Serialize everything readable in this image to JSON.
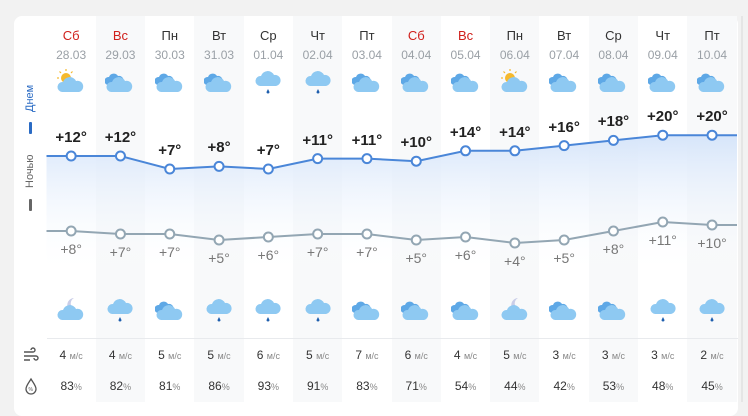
{
  "labels": {
    "day": "Днем",
    "night": "Ночью",
    "wind_unit": "м/с",
    "humidity_unit": "%"
  },
  "colors": {
    "day_line": "#4a86d8",
    "night_line": "#93a6b3",
    "weekend": "#d0201c"
  },
  "days": [
    {
      "name": "Сб",
      "date": "28.03",
      "weekend": true,
      "day_icon": "sun-cloud-icon",
      "day_temp": "+12°",
      "night_icon": "moon-cloud-icon",
      "night_temp": "+8°",
      "wind": "4",
      "humidity": "83",
      "d": 12,
      "n": 8
    },
    {
      "name": "Вс",
      "date": "29.03",
      "weekend": true,
      "day_icon": "clouds-icon",
      "day_temp": "+12°",
      "night_icon": "cloud-rain-icon",
      "night_temp": "+7°",
      "wind": "4",
      "humidity": "82",
      "d": 12,
      "n": 7
    },
    {
      "name": "Пн",
      "date": "30.03",
      "weekend": false,
      "day_icon": "clouds-icon",
      "day_temp": "+7°",
      "night_icon": "clouds-icon",
      "night_temp": "+7°",
      "wind": "5",
      "humidity": "81",
      "d": 7,
      "n": 7
    },
    {
      "name": "Вт",
      "date": "31.03",
      "weekend": false,
      "day_icon": "clouds-icon",
      "day_temp": "+8°",
      "night_icon": "cloud-rain-icon",
      "night_temp": "+5°",
      "wind": "5",
      "humidity": "86",
      "d": 8,
      "n": 5
    },
    {
      "name": "Ср",
      "date": "01.04",
      "weekend": false,
      "day_icon": "cloud-rain-icon",
      "day_temp": "+7°",
      "night_icon": "cloud-rain-icon",
      "night_temp": "+6°",
      "wind": "6",
      "humidity": "93",
      "d": 7,
      "n": 6
    },
    {
      "name": "Чт",
      "date": "02.04",
      "weekend": false,
      "day_icon": "cloud-rain-icon",
      "day_temp": "+11°",
      "night_icon": "cloud-rain-icon",
      "night_temp": "+7°",
      "wind": "5",
      "humidity": "91",
      "d": 11,
      "n": 7
    },
    {
      "name": "Пт",
      "date": "03.04",
      "weekend": false,
      "day_icon": "clouds-icon",
      "day_temp": "+11°",
      "night_icon": "clouds-icon",
      "night_temp": "+7°",
      "wind": "7",
      "humidity": "83",
      "d": 11,
      "n": 7
    },
    {
      "name": "Сб",
      "date": "04.04",
      "weekend": true,
      "day_icon": "clouds-icon",
      "day_temp": "+10°",
      "night_icon": "clouds-icon",
      "night_temp": "+5°",
      "wind": "6",
      "humidity": "71",
      "d": 10,
      "n": 5
    },
    {
      "name": "Вс",
      "date": "05.04",
      "weekend": true,
      "day_icon": "clouds-icon",
      "day_temp": "+14°",
      "night_icon": "clouds-icon",
      "night_temp": "+6°",
      "wind": "4",
      "humidity": "54",
      "d": 14,
      "n": 6
    },
    {
      "name": "Пн",
      "date": "06.04",
      "weekend": false,
      "day_icon": "sun-cloud-icon",
      "day_temp": "+14°",
      "night_icon": "moon-cloud-icon",
      "night_temp": "+4°",
      "wind": "5",
      "humidity": "44",
      "d": 14,
      "n": 4
    },
    {
      "name": "Вт",
      "date": "07.04",
      "weekend": false,
      "day_icon": "clouds-icon",
      "day_temp": "+16°",
      "night_icon": "clouds-icon",
      "night_temp": "+5°",
      "wind": "3",
      "humidity": "42",
      "d": 16,
      "n": 5
    },
    {
      "name": "Ср",
      "date": "08.04",
      "weekend": false,
      "day_icon": "clouds-icon",
      "day_temp": "+18°",
      "night_icon": "clouds-icon",
      "night_temp": "+8°",
      "wind": "3",
      "humidity": "53",
      "d": 18,
      "n": 8
    },
    {
      "name": "Чт",
      "date": "09.04",
      "weekend": false,
      "day_icon": "clouds-icon",
      "day_temp": "+20°",
      "night_icon": "cloud-rain-icon",
      "night_temp": "+11°",
      "wind": "3",
      "humidity": "48",
      "d": 20,
      "n": 11
    },
    {
      "name": "Пт",
      "date": "10.04",
      "weekend": false,
      "day_icon": "clouds-icon",
      "day_temp": "+20°",
      "night_icon": "cloud-rain-icon",
      "night_temp": "+10°",
      "wind": "2",
      "humidity": "45",
      "d": 20,
      "n": 10
    }
  ]
}
